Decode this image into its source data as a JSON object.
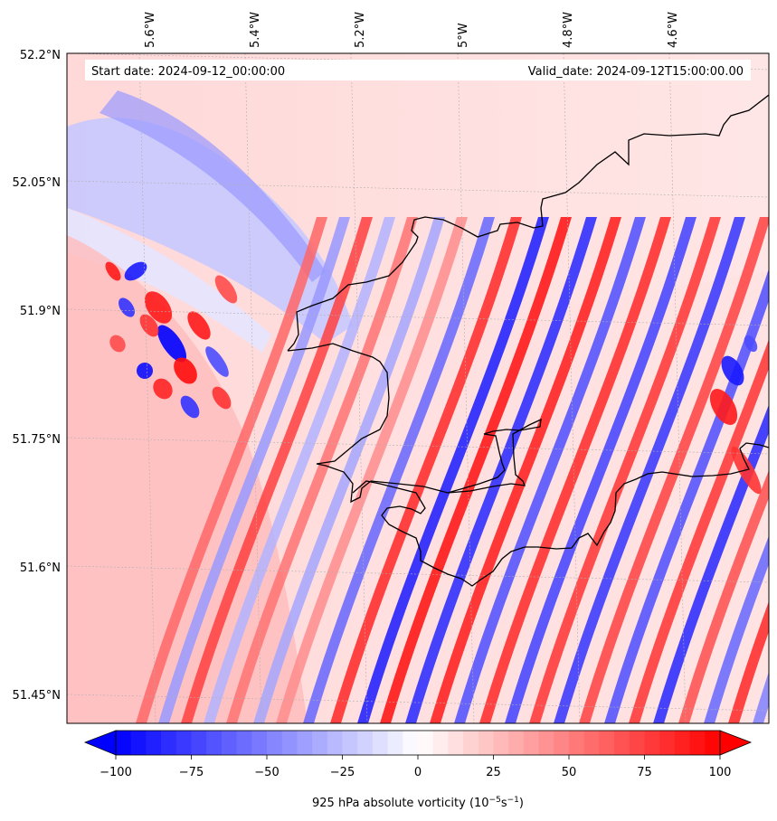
{
  "header": {
    "start_date": "Start date: 2024-09-12_00:00:00",
    "valid_date": "Valid_date: 2024-09-12T15:00:00.00"
  },
  "axes": {
    "lon_ticks": [
      "5.6°W",
      "5.4°W",
      "5.2°W",
      "5°W",
      "4.8°W",
      "4.6°W"
    ],
    "lat_ticks": [
      "52.2°N",
      "52.05°N",
      "51.9°N",
      "51.75°N",
      "51.6°N",
      "51.45°N"
    ]
  },
  "colorbar": {
    "ticks": [
      "−100",
      "−75",
      "−50",
      "−25",
      "0",
      "25",
      "50",
      "75",
      "100"
    ],
    "label_main": "925 hPa absolute vorticity (10",
    "label_exp1": "−5",
    "label_mid": "s",
    "label_exp2": "−1",
    "label_end": ")",
    "min": -100,
    "max": 100,
    "colors": {
      "negative": "#0000ff",
      "zero": "#ffffff",
      "positive": "#ff0000"
    }
  },
  "colors": {
    "coastline": "#000000",
    "gridline": "#b0b0b0"
  }
}
